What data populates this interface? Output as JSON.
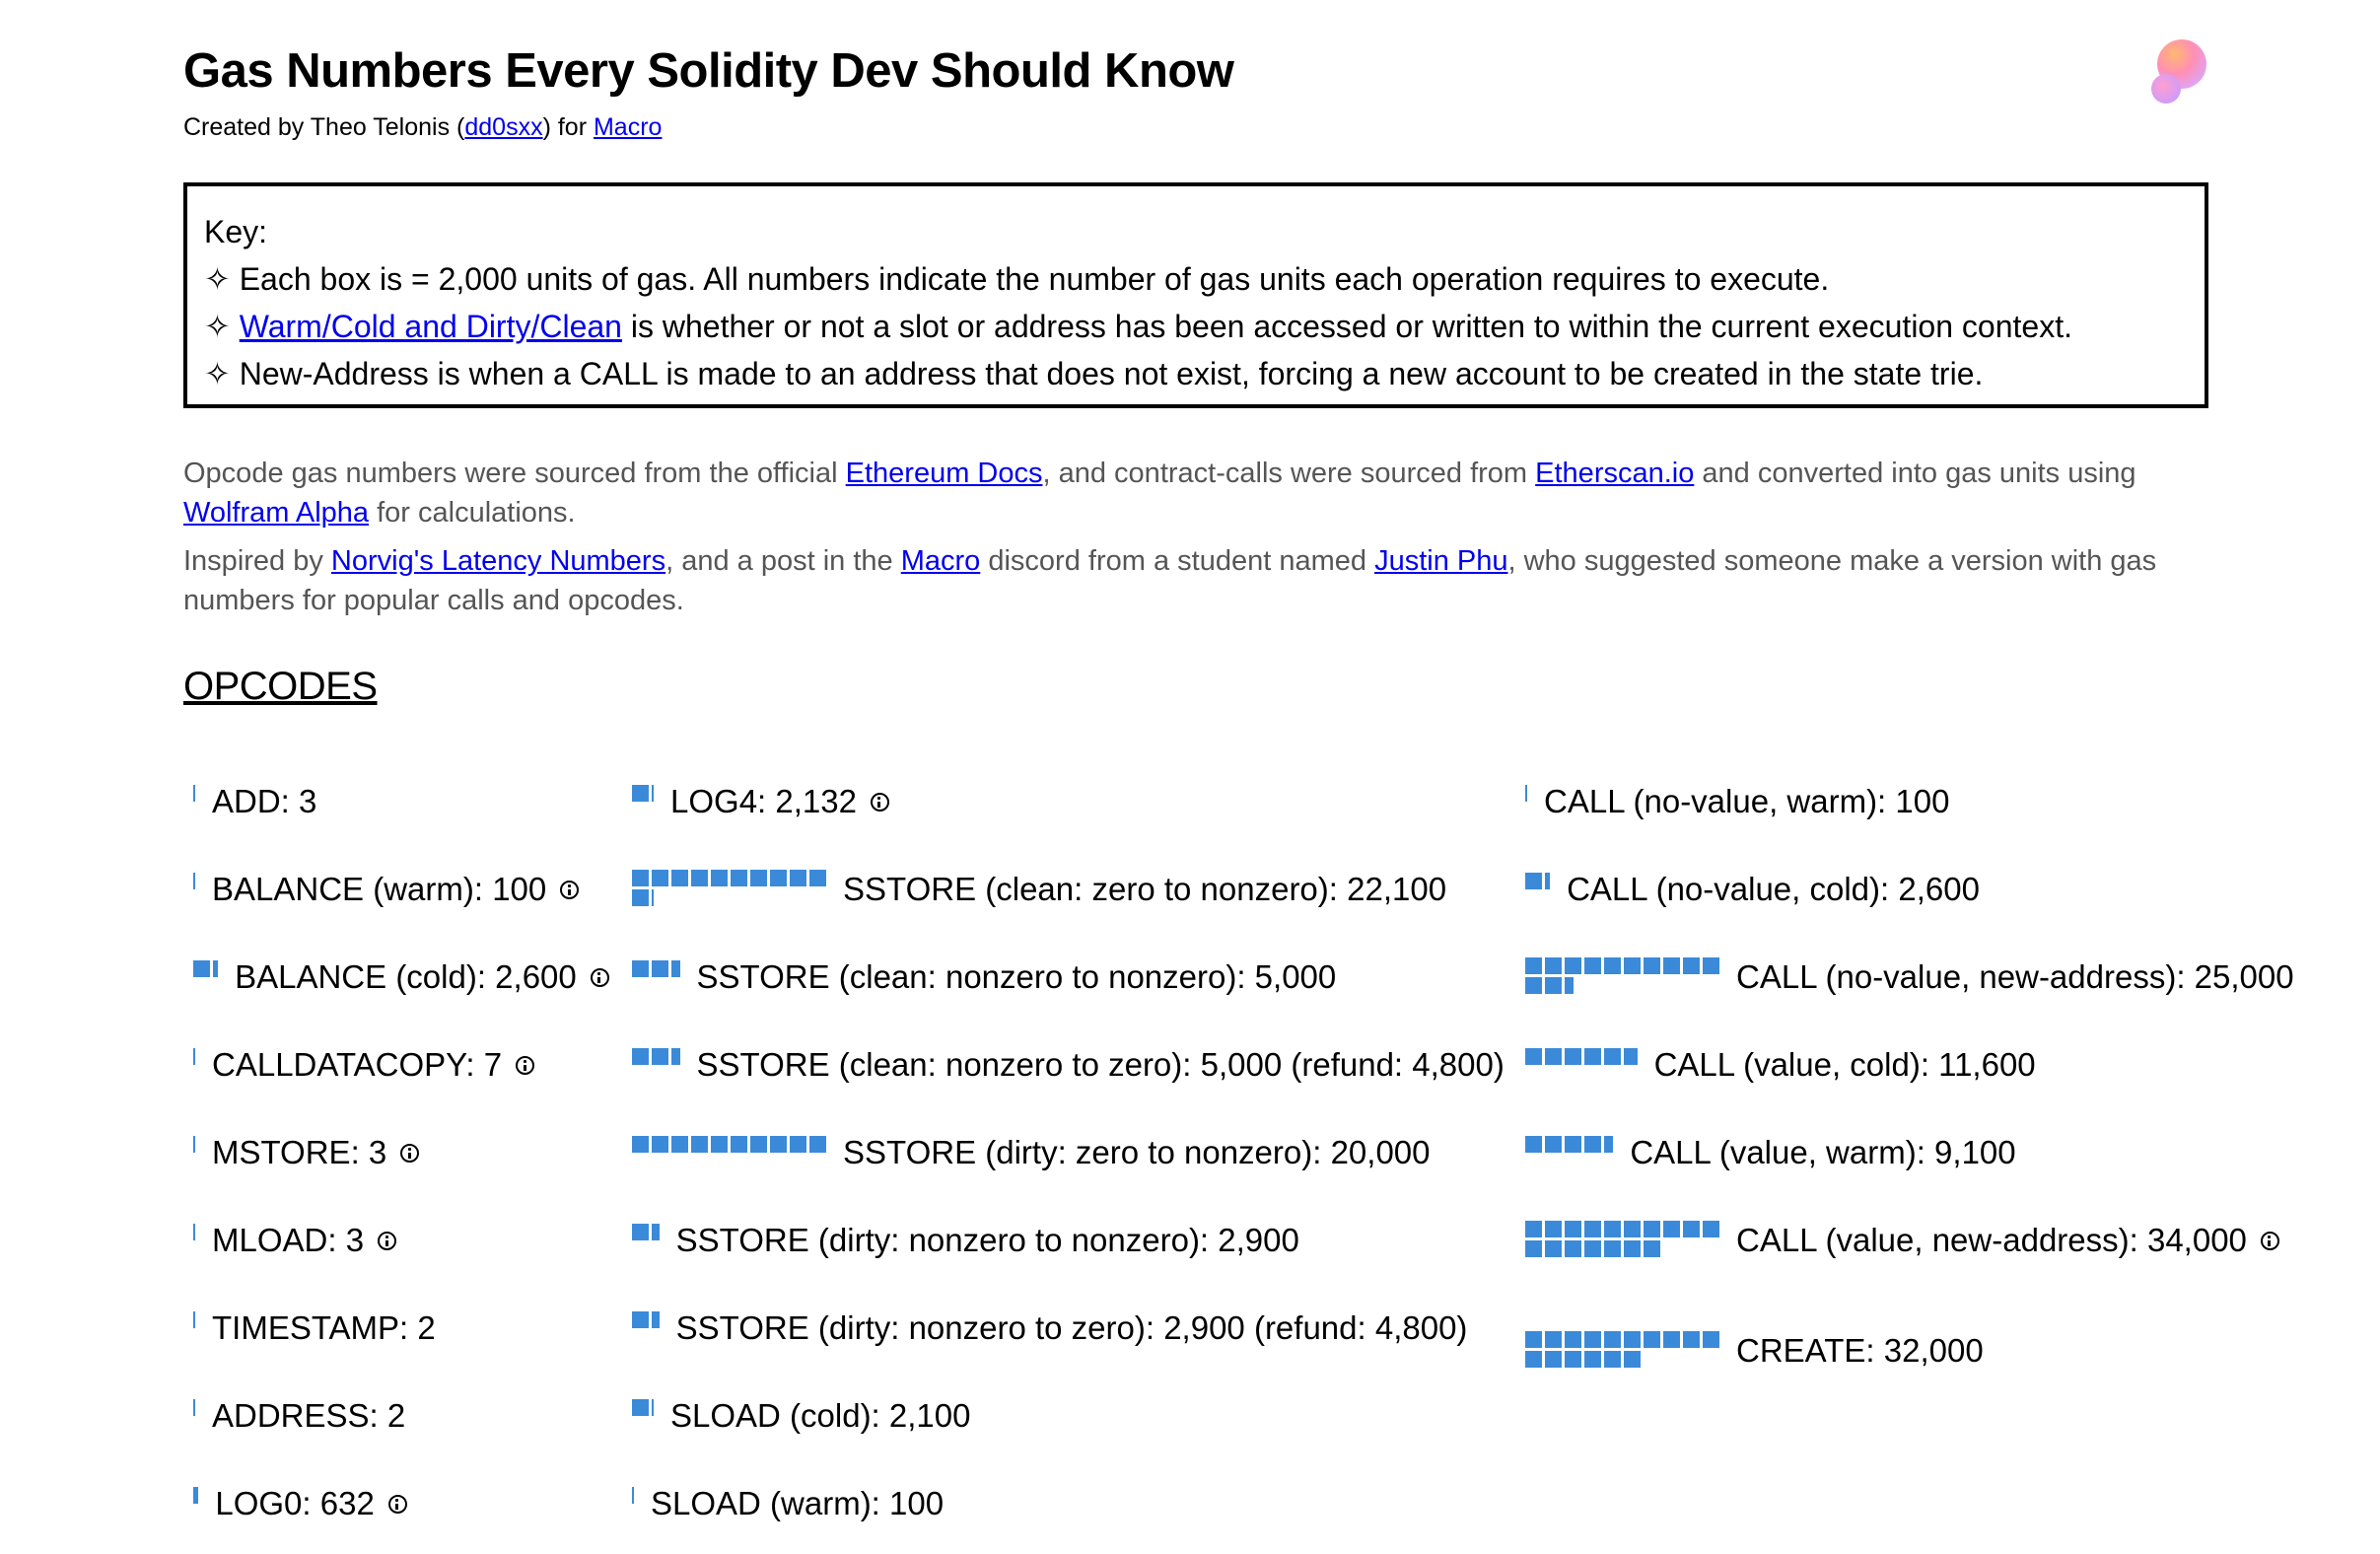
{
  "title": "Gas Numbers Every Solidity Dev Should Know",
  "credit": {
    "prefix": "Created by Theo Telonis (",
    "author_link": "dd0sxx",
    "middle": ") for ",
    "org_link": "Macro"
  },
  "key": {
    "heading": "Key:",
    "bullet": "✧",
    "line1": " Each box is = 2,000 units of gas. All numbers indicate the number of gas units each operation requires to execute.",
    "line2_link": "Warm/Cold and Dirty/Clean",
    "line2_rest": " is whether or not a slot or address has been accessed or written to within the current execution context.",
    "line3": " New-Address is when a CALL is made to an address that does not exist, forcing a new account to be created in the state trie."
  },
  "sources": {
    "p1_a": "Opcode gas numbers were sourced from the official ",
    "p1_link1": "Ethereum Docs",
    "p1_b": ", and contract-calls were sourced from ",
    "p1_link2": "Etherscan.io",
    "p1_c": " and converted into gas units using ",
    "p1_link3": "Wolfram Alpha",
    "p1_d": " for calculations.",
    "p2_a": "Inspired by ",
    "p2_link1": "Norvig's Latency Numbers",
    "p2_b": ", and a post in the ",
    "p2_link2": "Macro",
    "p2_c": " discord from a student named ",
    "p2_link3": "Justin Phu",
    "p2_d": ", who suggested someone make a version with gas numbers for popular calls and opcodes."
  },
  "opcodes_heading": "OPCODES",
  "box_unit": 2000,
  "box_color": "#3b8ad9",
  "columns": [
    [
      {
        "label": "ADD: 3",
        "gas": 3,
        "info": false
      },
      {
        "label": "BALANCE (warm): 100",
        "gas": 100,
        "info": true
      },
      {
        "label": "BALANCE (cold): 2,600",
        "gas": 2600,
        "info": true
      },
      {
        "label": "CALLDATACOPY: 7",
        "gas": 7,
        "info": true
      },
      {
        "label": "MSTORE: 3",
        "gas": 3,
        "info": true
      },
      {
        "label": "MLOAD: 3",
        "gas": 3,
        "info": true
      },
      {
        "label": "TIMESTAMP: 2",
        "gas": 2,
        "info": false
      },
      {
        "label": "ADDRESS: 2",
        "gas": 2,
        "info": false
      },
      {
        "label": "LOG0: 632",
        "gas": 632,
        "info": true
      }
    ],
    [
      {
        "label": "LOG4: 2,132",
        "gas": 2132,
        "info": true
      },
      {
        "label": "SSTORE (clean: zero to nonzero): 22,100",
        "gas": 22100,
        "info": false
      },
      {
        "label": "SSTORE (clean: nonzero to nonzero): 5,000",
        "gas": 5000,
        "info": false
      },
      {
        "label": "SSTORE (clean: nonzero to zero): 5,000 (refund: 4,800)",
        "gas": 5000,
        "info": false
      },
      {
        "label": "SSTORE (dirty: zero to nonzero): 20,000",
        "gas": 20000,
        "info": false
      },
      {
        "label": "SSTORE (dirty: nonzero to nonzero): 2,900",
        "gas": 2900,
        "info": false
      },
      {
        "label": "SSTORE (dirty: nonzero to zero): 2,900 (refund: 4,800)",
        "gas": 2900,
        "info": false
      },
      {
        "label": "SLOAD (cold): 2,100",
        "gas": 2100,
        "info": false
      },
      {
        "label": "SLOAD (warm): 100",
        "gas": 100,
        "info": false
      }
    ],
    [
      {
        "label": "CALL (no-value, warm): 100",
        "gas": 100,
        "info": false
      },
      {
        "label": "CALL (no-value, cold): 2,600",
        "gas": 2600,
        "info": false
      },
      {
        "label": "CALL (no-value, new-address): 25,000",
        "gas": 25000,
        "info": false
      },
      {
        "label": "CALL (value, cold): 11,600",
        "gas": 11600,
        "info": false
      },
      {
        "label": "CALL (value, warm): 9,100",
        "gas": 9100,
        "info": false
      },
      {
        "label": "CALL (value, new-address): 34,000",
        "gas": 34000,
        "info": true
      },
      {
        "label": "CREATE: 32,000",
        "gas": 32000,
        "info": false
      }
    ]
  ]
}
